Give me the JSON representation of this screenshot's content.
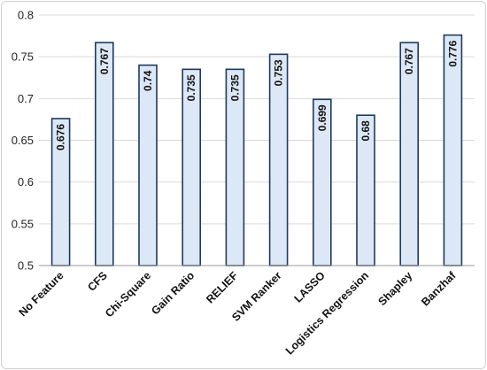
{
  "chart_data": {
    "type": "bar",
    "title": "",
    "xlabel": "",
    "ylabel": "",
    "ylim": [
      0.5,
      0.8
    ],
    "yticks": [
      "0.5",
      "0.55",
      "0.6",
      "0.65",
      "0.7",
      "0.75",
      "0.8"
    ],
    "grid": true,
    "legend": "none",
    "categories": [
      "No Feature",
      "CFS",
      "Chi-Square",
      "Gain Ratio",
      "RELIEF",
      "SVM Ranker",
      "LASSO",
      "Logistics Regression",
      "Shapley",
      "Banzhaf"
    ],
    "values": [
      0.676,
      0.767,
      0.74,
      0.735,
      0.735,
      0.753,
      0.699,
      0.68,
      0.767,
      0.776
    ],
    "value_labels": [
      "0.676",
      "0.767",
      "0.74",
      "0.735",
      "0.735",
      "0.753",
      "0.699",
      "0.68",
      "0.767",
      "0.776"
    ],
    "colors": {
      "bar_fill": "#dde8f6",
      "bar_stroke": "#1f3a5f",
      "grid": "#d9d9d9",
      "axis": "#9a9a9a"
    }
  }
}
